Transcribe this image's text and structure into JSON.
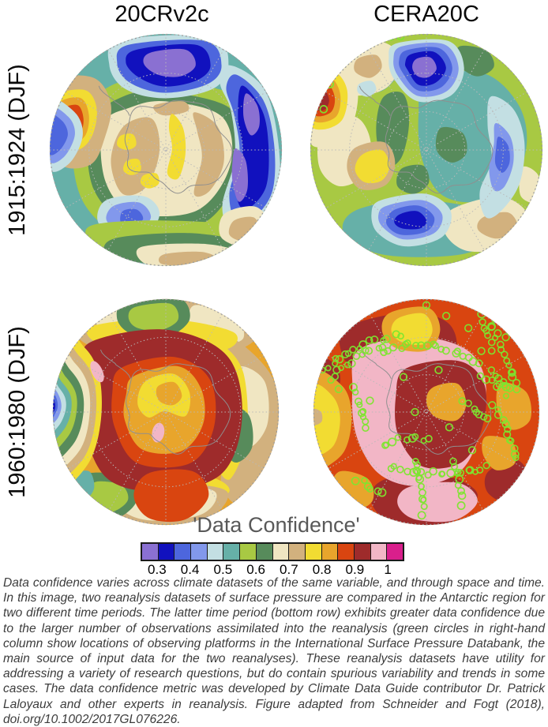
{
  "figure": {
    "columns": [
      {
        "label": "20CRv2c"
      },
      {
        "label": "CERA20C"
      }
    ],
    "rows": [
      {
        "label": "1915:1924 (DJF)"
      },
      {
        "label": "1960:1980 (DJF)"
      }
    ]
  },
  "colorbar": {
    "title": "'Data Confidence'",
    "tick_labels": [
      "0.3",
      "0.4",
      "0.5",
      "0.6",
      "0.7",
      "0.8",
      "0.9",
      "1"
    ],
    "colors": [
      "#8A70D2",
      "#1111BE",
      "#4D66DD",
      "#8298EC",
      "#C3DFE3",
      "#66B0A8",
      "#A8C943",
      "#578B5B",
      "#F0E6C2",
      "#D2B17E",
      "#F2DC32",
      "#E8A52C",
      "#D94510",
      "#9E2B2B",
      "#F2B6C6",
      "#D91F8C"
    ]
  },
  "observation_marker_color": "#7CE62E",
  "map_line_colors": {
    "graticule": "#b9b9b9",
    "coastline": "#8f8f8f",
    "rim": "#9a9a9a"
  },
  "caption": "Data confidence varies across climate datasets of the same variable, and through space and time. In this image, two reanalysis datasets of surface pressure are compared in the Antarctic region for two different time periods. The latter time period (bottom row) exhibits greater data confidence due to the larger number of observations assimilated into the reanalysis (green circles in right-hand column show locations of observing platforms in the International Surface Pressure Databank, the main source of input data for the two reanalyses). These reanalysis datasets have utility for addressing a variety of research questions, but do contain spurious variability and trends in some cases. The data confidence metric was developed by Climate Data Guide contributor Dr. Patrick Laloyaux and other experts in reanalysis. Figure adapted from Schneider and Fogt (2018), doi.org/10.1002/2017GL076226.",
  "chart_data": {
    "type": "heatmap",
    "title": "'Data Confidence'",
    "layout": "2x2 polar-stereographic Antarctic panels, shared horizontal colorbar below, caption at bottom",
    "scale": {
      "tick_labels": [
        "0.3",
        "0.4",
        "0.5",
        "0.6",
        "0.7",
        "0.8",
        "0.9",
        "1"
      ],
      "n_segments": 16,
      "ticks_at_every_second_boundary": true
    },
    "panels": [
      {
        "dataset": "20CRv2c",
        "period": "1915:1924 (DJF)",
        "summary": "Moderate confidence (~0.65-0.75, cream/tan) over the Antarctic continent with yellow arcs ~0.75; low confidence (~0.3-0.45, royal/dark blue with purple cores) over the ocean to the north/right and top; one high-confidence spot (~0.85-0.9, orange/red) near the Antarctic Peninsula at upper left; green/teal rings (~0.5-0.65) in between."
      },
      {
        "dataset": "CERA20C",
        "period": "1915:1924 (DJF)",
        "summary": "Mostly ~0.55-0.65 (yellow-green/teal/green) everywhere; low-confidence pockets (~0.3-0.45, blue with purple core) top-centre, right band and bottom-centre; cream patches ~0.65-0.7; yellow spot ~0.75 left of centre; one very high-confidence spot (~0.9, dark red) at upper left; a few green observation circles near the top and upper left.",
        "observation_points": [
          [
            105,
            5
          ],
          [
            117,
            5
          ],
          [
            27,
            66
          ],
          [
            19,
            98
          ]
        ]
      },
      {
        "dataset": "20CRv2c",
        "period": "1960:1980 (DJF)",
        "summary": "High confidence (~0.8-0.95, orange/red/dark red) over and around the continent with a yellow core ~0.75 at centre; tan/cream (~0.65-0.7) outer band with green spots (~0.55-0.65); confidence drops through a full rainbow of bands to ~0.3 (dark blue) at the left (South Pacific) edge; two small pink spots ~0.95-1."
      },
      {
        "dataset": "CERA20C",
        "period": "1960:1980 (DJF)",
        "summary": "Very high confidence (~0.85-1.0, red-orange/dark red with pink ~0.95-1 around the coast) almost everywhere; yellow/orange patches (~0.75-0.85) at left and top; dense bright-green circles mark observing-platform locations (ship tracks and stations) assimilated into the reanalysis.",
        "observation_tracks": [
          [
            [
              16,
              98
            ],
            [
              36,
              80
            ],
            [
              62,
              64
            ],
            [
              92,
              54
            ],
            [
              120,
              48
            ]
          ],
          [
            [
              22,
              106
            ],
            [
              44,
              88
            ],
            [
              70,
              72
            ],
            [
              98,
              62
            ]
          ],
          [
            [
              92,
              72
            ],
            [
              126,
              62
            ],
            [
              163,
              63
            ],
            [
              198,
              74
            ],
            [
              220,
              90
            ]
          ],
          [
            [
              232,
              6
            ],
            [
              238,
              38
            ],
            [
              248,
              68
            ],
            [
              260,
              98
            ],
            [
              271,
              128
            ]
          ],
          [
            [
              222,
              16
            ],
            [
              228,
              44
            ],
            [
              236,
              70
            ]
          ],
          [
            [
              222,
              104
            ],
            [
              244,
              114
            ],
            [
              266,
              122
            ]
          ],
          [
            [
              236,
              94
            ],
            [
              250,
              112
            ],
            [
              258,
              132
            ]
          ],
          [
            [
              238,
              142
            ],
            [
              252,
              163
            ],
            [
              263,
              188
            ],
            [
              268,
              212
            ]
          ],
          [
            [
              198,
              136
            ],
            [
              218,
              151
            ],
            [
              236,
              166
            ]
          ],
          [
            [
              102,
              222
            ],
            [
              136,
              229
            ],
            [
              172,
              231
            ],
            [
              206,
              228
            ],
            [
              232,
              220
            ]
          ],
          [
            [
              137,
              212
            ],
            [
              141,
              240
            ],
            [
              145,
              267
            ],
            [
              147,
              290
            ]
          ],
          [
            [
              187,
              216
            ],
            [
              192,
              246
            ],
            [
              195,
              274
            ]
          ],
          [
            [
              57,
              118
            ],
            [
              65,
              149
            ],
            [
              71,
              179
            ]
          ],
          [
            [
              93,
              196
            ],
            [
              114,
              186
            ],
            [
              137,
              183
            ],
            [
              158,
              189
            ]
          ],
          [
            [
              60,
              238
            ],
            [
              77,
              248
            ],
            [
              94,
              256
            ]
          ]
        ],
        "observation_points": [
          [
            150,
            10
          ],
          [
            176,
            24
          ],
          [
            205,
            40
          ],
          [
            135,
            150
          ],
          [
            180,
            170
          ],
          [
            120,
            104
          ],
          [
            166,
            95
          ],
          [
            76,
            135
          ],
          [
            210,
            200
          ],
          [
            222,
            70
          ],
          [
            35,
            120
          ],
          [
            254,
            52
          ]
        ]
      }
    ]
  }
}
